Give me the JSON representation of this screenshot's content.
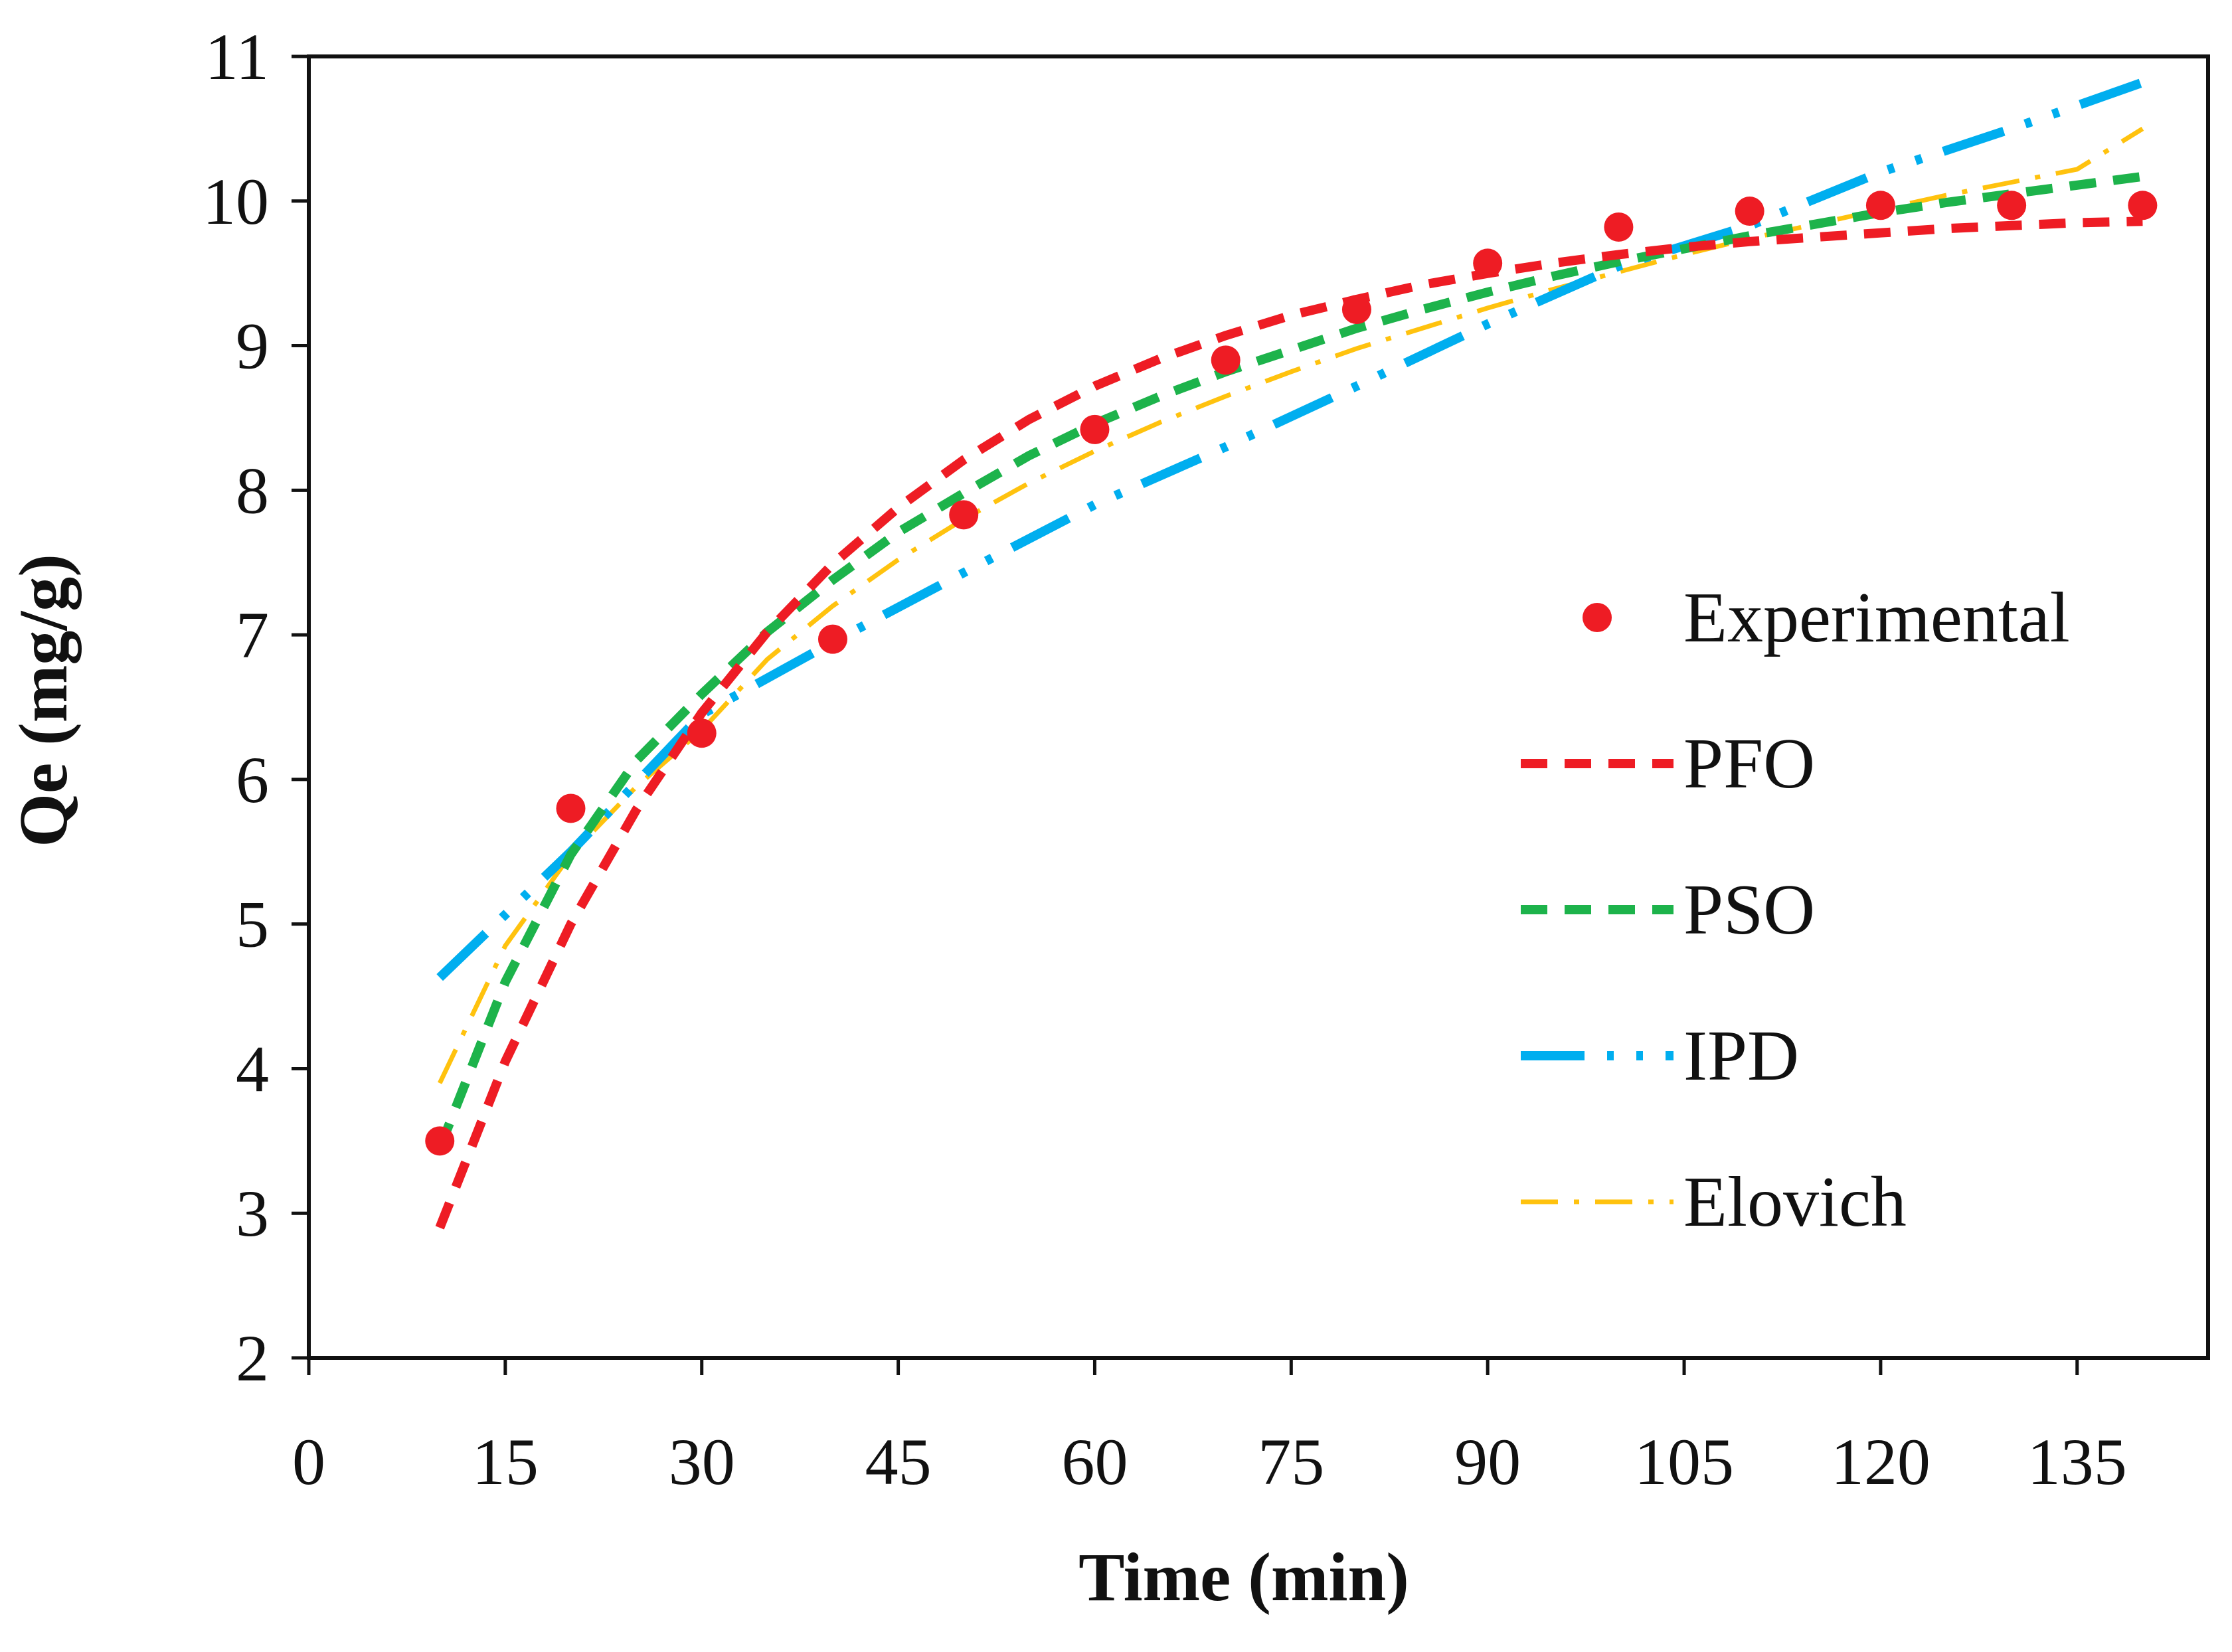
{
  "chart_data": {
    "type": "line",
    "title": "",
    "xlabel": "Time (min)",
    "ylabel": "Qe (mg/g)",
    "xlim": [
      0,
      145
    ],
    "ylim": [
      2,
      11
    ],
    "xticks": [
      0,
      15,
      30,
      45,
      60,
      75,
      90,
      105,
      120,
      135
    ],
    "yticks": [
      2,
      3,
      4,
      5,
      6,
      7,
      8,
      9,
      10,
      11
    ],
    "grid": false,
    "legend_position": "right",
    "series": [
      {
        "name": "Experimental",
        "kind": "scatter",
        "color": "#ee1c24",
        "x": [
          10,
          20,
          30,
          40,
          50,
          60,
          70,
          80,
          90,
          100,
          110,
          120,
          130,
          140
        ],
        "y": [
          3.5,
          5.8,
          6.32,
          6.97,
          7.83,
          8.42,
          8.9,
          9.25,
          9.57,
          9.82,
          9.93,
          9.97,
          9.97,
          9.97
        ]
      },
      {
        "name": "PFO",
        "kind": "line",
        "style": "dash",
        "color": "#ee1c24",
        "x": [
          10,
          15,
          20,
          25,
          30,
          35,
          40,
          45,
          50,
          55,
          60,
          65,
          70,
          75,
          80,
          85,
          90,
          95,
          100,
          105,
          110,
          115,
          120,
          125,
          130,
          135,
          140
        ],
        "y": [
          2.9,
          4.05,
          5.0,
          5.79,
          6.46,
          7.02,
          7.49,
          7.88,
          8.21,
          8.49,
          8.72,
          8.91,
          9.07,
          9.21,
          9.32,
          9.42,
          9.5,
          9.57,
          9.63,
          9.68,
          9.72,
          9.75,
          9.78,
          9.81,
          9.83,
          9.85,
          9.86
        ]
      },
      {
        "name": "PSO",
        "kind": "line",
        "style": "dash",
        "color": "#1db34b",
        "x": [
          10,
          15,
          20,
          25,
          30,
          35,
          40,
          45,
          50,
          55,
          60,
          65,
          70,
          75,
          80,
          85,
          90,
          95,
          100,
          105,
          110,
          115,
          120,
          125,
          130,
          135,
          140
        ],
        "y": [
          3.45,
          4.6,
          5.48,
          6.13,
          6.59,
          7.02,
          7.38,
          7.71,
          7.98,
          8.24,
          8.46,
          8.65,
          8.82,
          8.97,
          9.12,
          9.25,
          9.37,
          9.48,
          9.58,
          9.67,
          9.76,
          9.84,
          9.92,
          9.99,
          10.05,
          10.11,
          10.17
        ]
      },
      {
        "name": "IPD",
        "kind": "line",
        "style": "dash-dot-dot",
        "color": "#00aeef",
        "x": [
          10,
          20,
          30,
          40,
          50,
          60,
          70,
          80,
          90,
          100,
          110,
          120,
          130,
          140
        ],
        "y": [
          4.63,
          5.5,
          6.45,
          6.95,
          7.43,
          7.9,
          8.3,
          8.72,
          9.15,
          9.55,
          9.83,
          10.2,
          10.5,
          10.82
        ]
      },
      {
        "name": "Elovich",
        "kind": "line",
        "style": "dash-dot",
        "color": "#ffc20e",
        "x": [
          10,
          15,
          20,
          25,
          30,
          35,
          40,
          45,
          50,
          55,
          60,
          65,
          70,
          75,
          80,
          85,
          90,
          95,
          100,
          105,
          110,
          115,
          120,
          125,
          130,
          135,
          140
        ],
        "y": [
          3.9,
          4.85,
          5.48,
          5.95,
          6.34,
          6.83,
          7.2,
          7.52,
          7.8,
          8.05,
          8.27,
          8.47,
          8.65,
          8.82,
          8.98,
          9.12,
          9.26,
          9.39,
          9.51,
          9.63,
          9.74,
          9.84,
          9.94,
          10.04,
          10.13,
          10.22,
          10.5
        ]
      }
    ]
  }
}
